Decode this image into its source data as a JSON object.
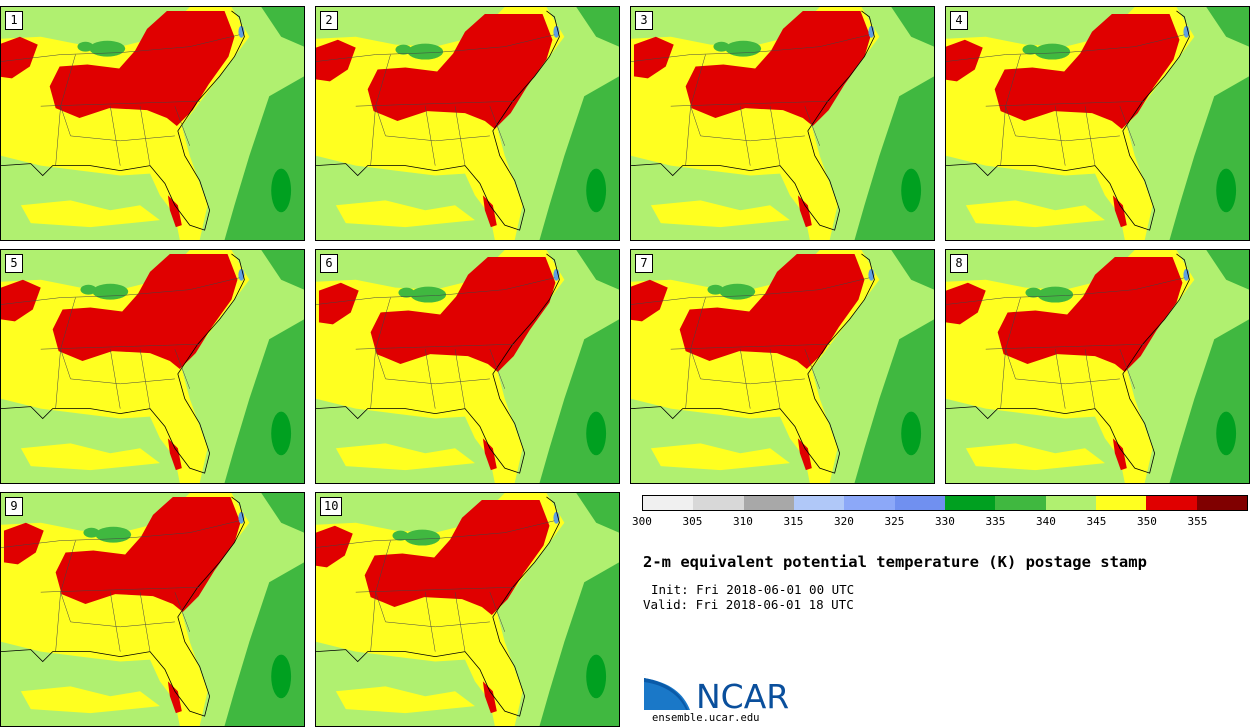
{
  "title": "2-m equivalent potential temperature (K) postage stamp",
  "init_line": "Init: Fri 2018-06-01 00 UTC",
  "valid_line": "Valid: Fri 2018-06-01 18 UTC",
  "logo": {
    "text": "NCAR",
    "url": "ensemble.ucar.edu"
  },
  "members": [
    "1",
    "2",
    "3",
    "4",
    "5",
    "6",
    "7",
    "8",
    "9",
    "10"
  ],
  "colorbar": {
    "levels": [
      "300",
      "305",
      "310",
      "315",
      "320",
      "325",
      "330",
      "335",
      "340",
      "345",
      "350",
      "355"
    ],
    "colors": [
      "#f0f0f0",
      "#d8d8d8",
      "#a8a8a8",
      "#b0c8f8",
      "#8ca8f8",
      "#7090f0",
      "#00a020",
      "#40b840",
      "#b0f070",
      "#ffff20",
      "#e00000",
      "#800000"
    ]
  },
  "map_colors": {
    "yellow": "#ffff20",
    "light_green": "#b0f070",
    "mid_green": "#40b840",
    "dark_green": "#00a020",
    "red": "#e00000",
    "lake_blue": "#60a0e0"
  }
}
